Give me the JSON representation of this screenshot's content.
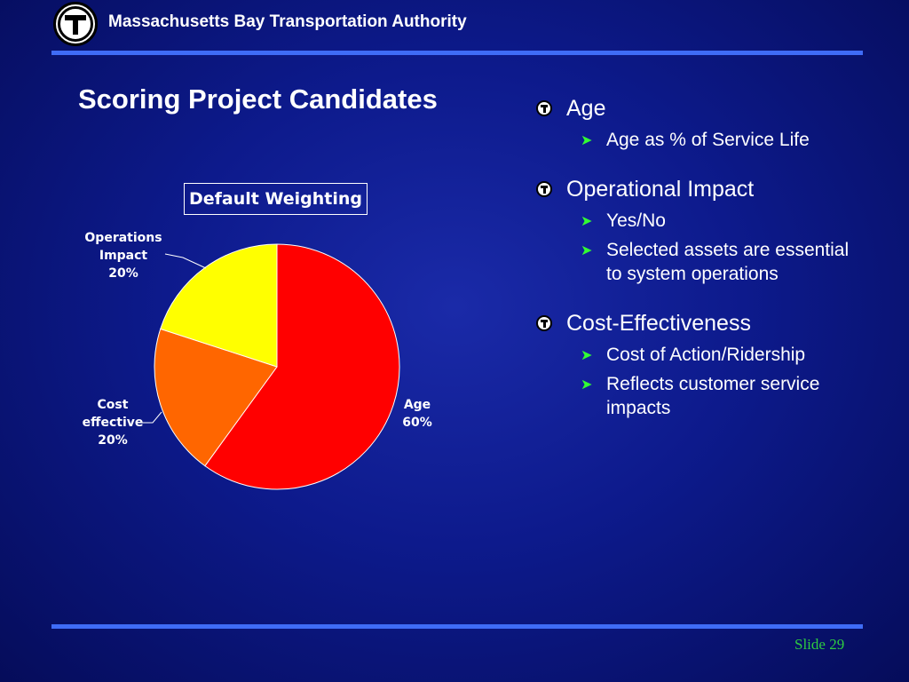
{
  "header": {
    "logo_icon": "mbta-t-logo-icon",
    "org_name": "Massachusetts Bay Transportation Authority"
  },
  "slide": {
    "title": "Scoring Project Candidates",
    "number_label": "Slide 29"
  },
  "chart_data": {
    "type": "pie",
    "title": "Default Weighting",
    "slices": [
      {
        "label": "Age",
        "value": 60,
        "color": "#ff0000"
      },
      {
        "label": "Cost effective",
        "value": 20,
        "color": "#ff6600"
      },
      {
        "label": "Operations Impact",
        "value": 20,
        "color": "#ffff00"
      }
    ],
    "labels": {
      "age": "Age",
      "age_pct": "60%",
      "cost_line1": "Cost",
      "cost_line2": "effective",
      "cost_pct": "20%",
      "ops_line1": "Operations",
      "ops_line2": "Impact",
      "ops_pct": "20%"
    }
  },
  "bullets": [
    {
      "label": "Age",
      "icon": "mbta-t-bullet-icon",
      "sub": [
        "Age as % of Service Life"
      ]
    },
    {
      "label": "Operational Impact",
      "icon": "mbta-t-bullet-icon",
      "sub": [
        "Yes/No",
        "Selected assets are essential to system operations"
      ]
    },
    {
      "label": "Cost-Effectiveness",
      "icon": "mbta-t-bullet-icon",
      "sub": [
        "Cost of Action/Ridership",
        "Reflects customer service impacts"
      ]
    }
  ],
  "colors": {
    "background": "#0d1a8c",
    "rule": "#3f6cf6",
    "sub_arrow": "#33ff33",
    "slide_number": "#2ecc40"
  }
}
